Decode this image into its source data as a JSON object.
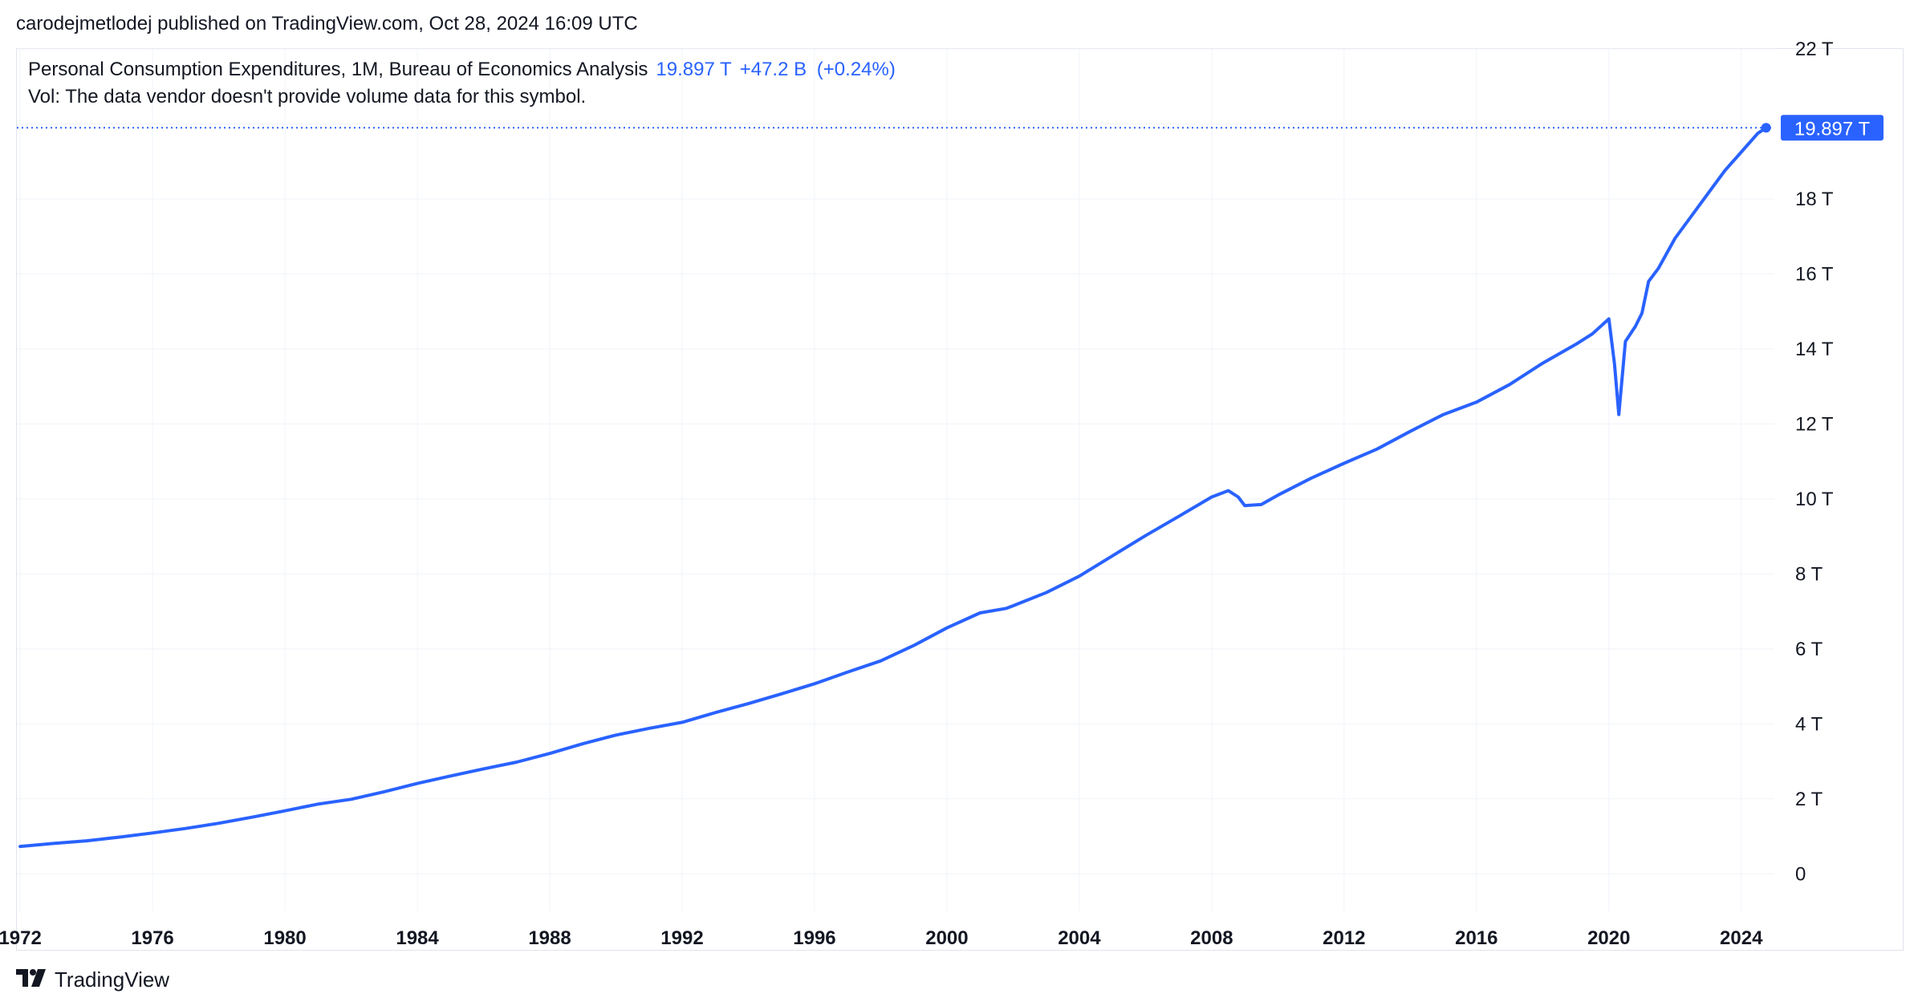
{
  "header": {
    "published_line": "carodejmetlodej published on TradingView.com, Oct 28, 2024 16:09 UTC"
  },
  "legend": {
    "symbol_line": "Personal Consumption Expenditures, 1M, Bureau of Economics Analysis",
    "last_value": "19.897 T",
    "change": "+47.2 B",
    "change_pct": "(+0.24%)",
    "volume_note": "Vol: The data vendor doesn't provide volume data for this symbol."
  },
  "footer": {
    "brand": "TradingView"
  },
  "colors": {
    "series": "#2962ff",
    "grid": "#f0f3fa",
    "axis_text": "#131722",
    "price_label_bg": "#2962ff",
    "price_label_text": "#ffffff"
  },
  "chart_data": {
    "type": "line",
    "title": "Personal Consumption Expenditures",
    "xlabel": "",
    "ylabel": "",
    "ylim": [
      -1,
      22
    ],
    "xlim": [
      1971.9,
      2025.0
    ],
    "y_unit": "T",
    "grid": true,
    "y_ticks": [
      0,
      2,
      4,
      6,
      8,
      10,
      12,
      14,
      16,
      18,
      22
    ],
    "y_tick_labels": [
      "0",
      "2 T",
      "4 T",
      "6 T",
      "8 T",
      "10 T",
      "12 T",
      "14 T",
      "16 T",
      "18 T",
      "22 T"
    ],
    "x_ticks": [
      1972,
      1976,
      1980,
      1984,
      1988,
      1992,
      1996,
      2000,
      2004,
      2008,
      2012,
      2016,
      2020,
      2024
    ],
    "x_tick_labels": [
      "1972",
      "1976",
      "1980",
      "1984",
      "1988",
      "1992",
      "1996",
      "2000",
      "2004",
      "2008",
      "2012",
      "2016",
      "2020",
      "2024"
    ],
    "last_price_label": "19.897 T",
    "series": [
      {
        "name": "Personal Consumption Expenditures",
        "points": [
          [
            1972.0,
            0.73
          ],
          [
            1973.0,
            0.81
          ],
          [
            1974.0,
            0.88
          ],
          [
            1975.0,
            0.98
          ],
          [
            1976.0,
            1.09
          ],
          [
            1977.0,
            1.21
          ],
          [
            1978.0,
            1.35
          ],
          [
            1979.0,
            1.51
          ],
          [
            1980.0,
            1.68
          ],
          [
            1981.0,
            1.86
          ],
          [
            1982.0,
            1.99
          ],
          [
            1983.0,
            2.19
          ],
          [
            1984.0,
            2.41
          ],
          [
            1985.0,
            2.61
          ],
          [
            1986.0,
            2.8
          ],
          [
            1987.0,
            2.98
          ],
          [
            1988.0,
            3.21
          ],
          [
            1989.0,
            3.47
          ],
          [
            1990.0,
            3.7
          ],
          [
            1991.0,
            3.88
          ],
          [
            1992.0,
            4.04
          ],
          [
            1993.0,
            4.3
          ],
          [
            1994.0,
            4.54
          ],
          [
            1995.0,
            4.8
          ],
          [
            1996.0,
            5.07
          ],
          [
            1997.0,
            5.38
          ],
          [
            1998.0,
            5.68
          ],
          [
            1999.0,
            6.09
          ],
          [
            2000.0,
            6.56
          ],
          [
            2001.0,
            6.96
          ],
          [
            2001.8,
            7.08
          ],
          [
            2002.0,
            7.15
          ],
          [
            2003.0,
            7.5
          ],
          [
            2004.0,
            7.94
          ],
          [
            2005.0,
            8.48
          ],
          [
            2006.0,
            9.02
          ],
          [
            2007.0,
            9.53
          ],
          [
            2008.0,
            10.05
          ],
          [
            2008.5,
            10.22
          ],
          [
            2008.8,
            10.05
          ],
          [
            2009.0,
            9.82
          ],
          [
            2009.5,
            9.85
          ],
          [
            2010.0,
            10.1
          ],
          [
            2011.0,
            10.55
          ],
          [
            2012.0,
            10.95
          ],
          [
            2013.0,
            11.33
          ],
          [
            2014.0,
            11.8
          ],
          [
            2015.0,
            12.25
          ],
          [
            2016.0,
            12.58
          ],
          [
            2017.0,
            13.05
          ],
          [
            2018.0,
            13.62
          ],
          [
            2019.0,
            14.12
          ],
          [
            2019.5,
            14.4
          ],
          [
            2020.0,
            14.8
          ],
          [
            2020.17,
            13.6
          ],
          [
            2020.3,
            12.25
          ],
          [
            2020.5,
            14.2
          ],
          [
            2020.8,
            14.6
          ],
          [
            2021.0,
            14.95
          ],
          [
            2021.2,
            15.8
          ],
          [
            2021.5,
            16.15
          ],
          [
            2022.0,
            16.95
          ],
          [
            2022.5,
            17.55
          ],
          [
            2023.0,
            18.15
          ],
          [
            2023.5,
            18.75
          ],
          [
            2024.0,
            19.25
          ],
          [
            2024.5,
            19.75
          ],
          [
            2024.75,
            19.897
          ]
        ]
      }
    ]
  }
}
